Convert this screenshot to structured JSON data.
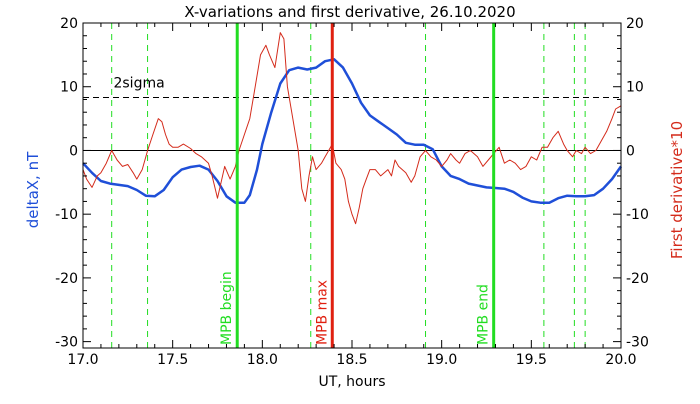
{
  "chart_data": {
    "type": "line",
    "title": "X-variations and first derivative, 26.10.2020",
    "xlabel": "UT, hours",
    "ylabel_left": "deltaX, nT",
    "ylabel_right": "First derivative*10",
    "xlim": [
      17.0,
      20.0
    ],
    "ylim": [
      -31,
      20
    ],
    "x_ticks": [
      "17.0",
      "17.5",
      "18.0",
      "18.5",
      "19.0",
      "19.5",
      "20.0"
    ],
    "y_ticks": [
      "-30",
      "-20",
      "-10",
      "0",
      "10",
      "20"
    ],
    "colors": {
      "deltaX": "#1f4fd8",
      "derivative": "#d42b1b",
      "mpb_boundary": "#22dd22",
      "mpb_max": "#e02010",
      "threshold": "#000000"
    },
    "threshold": {
      "label": "2sigma",
      "value": 8.3
    },
    "zero_line": 0,
    "vertical_markers": [
      {
        "label": "MPB begin",
        "x": 17.86,
        "color": "#22dd22"
      },
      {
        "label": "MPB max",
        "x": 18.39,
        "color": "#e02010"
      },
      {
        "label": "MPB end",
        "x": 19.29,
        "color": "#22dd22"
      }
    ],
    "dashed_markers_x": [
      17.16,
      17.36,
      18.27,
      18.91,
      19.57,
      19.74,
      19.8
    ],
    "series": [
      {
        "id": "deltaX",
        "color": "#1f4fd8",
        "points": [
          [
            17.0,
            -2
          ],
          [
            17.05,
            -3.5
          ],
          [
            17.1,
            -4.8
          ],
          [
            17.15,
            -5.2
          ],
          [
            17.2,
            -5.4
          ],
          [
            17.25,
            -5.6
          ],
          [
            17.3,
            -6.2
          ],
          [
            17.35,
            -7.1
          ],
          [
            17.4,
            -7.2
          ],
          [
            17.45,
            -6.2
          ],
          [
            17.5,
            -4.2
          ],
          [
            17.55,
            -3
          ],
          [
            17.6,
            -2.6
          ],
          [
            17.65,
            -2.4
          ],
          [
            17.7,
            -3
          ],
          [
            17.75,
            -4.8
          ],
          [
            17.8,
            -7.2
          ],
          [
            17.85,
            -8.2
          ],
          [
            17.9,
            -8.2
          ],
          [
            17.93,
            -7
          ],
          [
            17.97,
            -3
          ],
          [
            18.0,
            1
          ],
          [
            18.05,
            6
          ],
          [
            18.1,
            10.5
          ],
          [
            18.15,
            12.6
          ],
          [
            18.2,
            13
          ],
          [
            18.25,
            12.7
          ],
          [
            18.3,
            13
          ],
          [
            18.35,
            14
          ],
          [
            18.4,
            14.3
          ],
          [
            18.45,
            13
          ],
          [
            18.5,
            10.5
          ],
          [
            18.55,
            7.5
          ],
          [
            18.6,
            5.5
          ],
          [
            18.65,
            4.5
          ],
          [
            18.7,
            3.5
          ],
          [
            18.75,
            2.5
          ],
          [
            18.8,
            1.2
          ],
          [
            18.85,
            0.9
          ],
          [
            18.9,
            0.9
          ],
          [
            18.95,
            0.2
          ],
          [
            19.0,
            -2.5
          ],
          [
            19.05,
            -4
          ],
          [
            19.1,
            -4.5
          ],
          [
            19.15,
            -5.2
          ],
          [
            19.2,
            -5.5
          ],
          [
            19.25,
            -5.8
          ],
          [
            19.3,
            -5.9
          ],
          [
            19.35,
            -6
          ],
          [
            19.4,
            -6.5
          ],
          [
            19.45,
            -7.4
          ],
          [
            19.5,
            -8
          ],
          [
            19.55,
            -8.2
          ],
          [
            19.6,
            -8.2
          ],
          [
            19.65,
            -7.5
          ],
          [
            19.7,
            -7.1
          ],
          [
            19.75,
            -7.2
          ],
          [
            19.8,
            -7.2
          ],
          [
            19.85,
            -7
          ],
          [
            19.9,
            -6
          ],
          [
            19.95,
            -4.5
          ],
          [
            20.0,
            -2.5
          ]
        ]
      },
      {
        "id": "derivative",
        "color": "#d42b1b",
        "points": [
          [
            17.0,
            -3
          ],
          [
            17.02,
            -4.5
          ],
          [
            17.05,
            -5.8
          ],
          [
            17.08,
            -4
          ],
          [
            17.1,
            -3.5
          ],
          [
            17.13,
            -2
          ],
          [
            17.16,
            0
          ],
          [
            17.19,
            -1.5
          ],
          [
            17.22,
            -2.5
          ],
          [
            17.25,
            -2.2
          ],
          [
            17.28,
            -3.5
          ],
          [
            17.3,
            -4.5
          ],
          [
            17.33,
            -3
          ],
          [
            17.36,
            0
          ],
          [
            17.39,
            2.5
          ],
          [
            17.42,
            5
          ],
          [
            17.44,
            4.5
          ],
          [
            17.46,
            2.5
          ],
          [
            17.48,
            1
          ],
          [
            17.5,
            0.5
          ],
          [
            17.53,
            0.5
          ],
          [
            17.56,
            1
          ],
          [
            17.6,
            0.3
          ],
          [
            17.63,
            -0.5
          ],
          [
            17.66,
            -1
          ],
          [
            17.7,
            -2
          ],
          [
            17.72,
            -4
          ],
          [
            17.75,
            -7.5
          ],
          [
            17.77,
            -5
          ],
          [
            17.79,
            -2.5
          ],
          [
            17.82,
            -4.5
          ],
          [
            17.85,
            -2.5
          ],
          [
            17.87,
            0
          ],
          [
            17.9,
            2.5
          ],
          [
            17.93,
            5
          ],
          [
            17.96,
            10
          ],
          [
            17.99,
            15
          ],
          [
            18.02,
            16.5
          ],
          [
            18.04,
            15
          ],
          [
            18.07,
            13
          ],
          [
            18.1,
            18.5
          ],
          [
            18.12,
            17.5
          ],
          [
            18.14,
            10
          ],
          [
            18.17,
            5
          ],
          [
            18.2,
            0
          ],
          [
            18.22,
            -6
          ],
          [
            18.24,
            -8
          ],
          [
            18.26,
            -4
          ],
          [
            18.28,
            -1
          ],
          [
            18.3,
            -3
          ],
          [
            18.33,
            -2
          ],
          [
            18.35,
            -1
          ],
          [
            18.37,
            0
          ],
          [
            18.39,
            1
          ],
          [
            18.41,
            -2
          ],
          [
            18.44,
            -3
          ],
          [
            18.46,
            -4.5
          ],
          [
            18.48,
            -8
          ],
          [
            18.5,
            -10
          ],
          [
            18.52,
            -11.5
          ],
          [
            18.54,
            -9
          ],
          [
            18.56,
            -6
          ],
          [
            18.58,
            -4.5
          ],
          [
            18.6,
            -3
          ],
          [
            18.63,
            -3
          ],
          [
            18.66,
            -4
          ],
          [
            18.7,
            -3
          ],
          [
            18.72,
            -4
          ],
          [
            18.74,
            -1.5
          ],
          [
            18.76,
            -2.5
          ],
          [
            18.8,
            -3.5
          ],
          [
            18.83,
            -5
          ],
          [
            18.85,
            -4
          ],
          [
            18.88,
            -1
          ],
          [
            18.91,
            0
          ],
          [
            18.94,
            -1
          ],
          [
            18.97,
            -1.5
          ],
          [
            19.0,
            -2.5
          ],
          [
            19.03,
            -1.5
          ],
          [
            19.05,
            -0.5
          ],
          [
            19.08,
            -1.5
          ],
          [
            19.1,
            -2
          ],
          [
            19.13,
            -0.5
          ],
          [
            19.16,
            0
          ],
          [
            19.2,
            -1
          ],
          [
            19.23,
            -2.5
          ],
          [
            19.26,
            -1.5
          ],
          [
            19.29,
            -0.5
          ],
          [
            19.32,
            0.5
          ],
          [
            19.35,
            -2
          ],
          [
            19.38,
            -1.5
          ],
          [
            19.41,
            -2
          ],
          [
            19.44,
            -3
          ],
          [
            19.47,
            -2.5
          ],
          [
            19.5,
            -1
          ],
          [
            19.53,
            -1.5
          ],
          [
            19.56,
            0.5
          ],
          [
            19.59,
            0.5
          ],
          [
            19.62,
            2
          ],
          [
            19.65,
            3
          ],
          [
            19.68,
            1
          ],
          [
            19.7,
            0
          ],
          [
            19.73,
            -1
          ],
          [
            19.75,
            0
          ],
          [
            19.78,
            -0.5
          ],
          [
            19.8,
            0.5
          ],
          [
            19.83,
            -0.5
          ],
          [
            19.86,
            0
          ],
          [
            19.89,
            1.5
          ],
          [
            19.92,
            3
          ],
          [
            19.95,
            5
          ],
          [
            19.97,
            6.5
          ],
          [
            20.0,
            7
          ]
        ]
      }
    ]
  }
}
